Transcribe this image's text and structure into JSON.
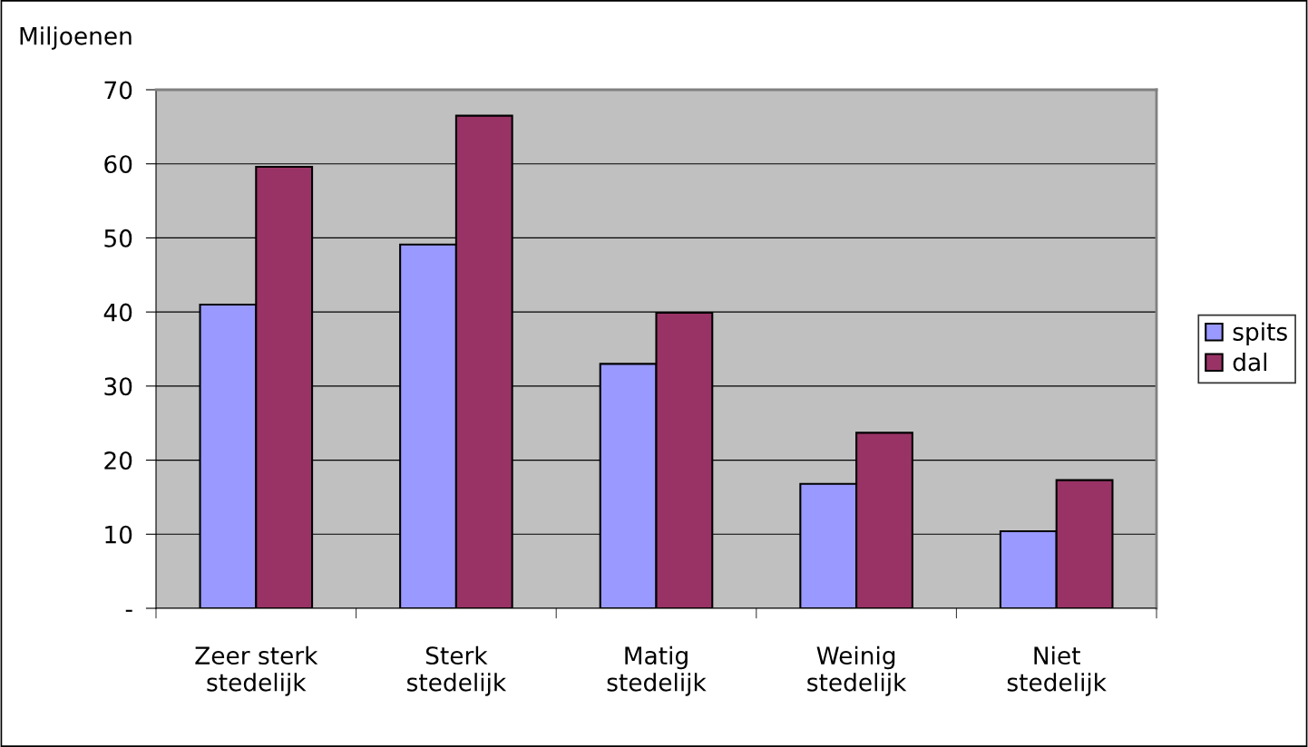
{
  "chart_data": {
    "type": "bar",
    "ylabel": "Miljoenen",
    "categories": [
      "Zeer sterk\nstedelijk",
      "Sterk\nstedelijk",
      "Matig\nstedelijk",
      "Weinig\nstedelijk",
      "Niet\nstedelijk"
    ],
    "series": [
      {
        "name": "spits",
        "color": "#9999ff",
        "values": [
          41.0,
          49.1,
          33.0,
          16.8,
          10.4
        ]
      },
      {
        "name": "dal",
        "color": "#993366",
        "values": [
          59.6,
          66.5,
          39.9,
          23.7,
          17.3
        ]
      }
    ],
    "ylim": [
      0,
      70
    ],
    "yticks": [
      {
        "value": 0,
        "label": "-"
      },
      10,
      20,
      30,
      40,
      50,
      60,
      70
    ],
    "grid": "y",
    "legend": "right"
  }
}
